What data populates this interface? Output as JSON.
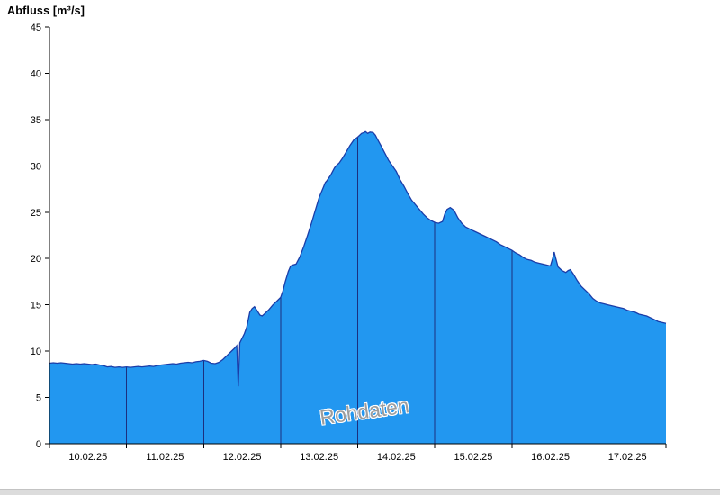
{
  "chart_data": {
    "type": "area",
    "title": "Abfluss [m³/s]",
    "watermark": "Rohdaten",
    "xlabel": "",
    "ylabel": "Abfluss [m³/s]",
    "ylim": [
      0,
      45
    ],
    "y_ticks": [
      0,
      5,
      10,
      15,
      20,
      25,
      30,
      35,
      40,
      45
    ],
    "x_tick_labels": [
      "10.02.25",
      "11.02.25",
      "12.02.25",
      "13.02.25",
      "14.02.25",
      "15.02.25",
      "16.02.25",
      "17.02.25"
    ],
    "x_days_span": 8,
    "grid": "vertical-day-lines-inside-area-only",
    "legend_position": "none",
    "colors": {
      "fill": "#2297f0",
      "line": "#1b3da8",
      "day_grid": "#1c2f7e",
      "axis": "#000000",
      "watermark": "#9c9c9c"
    },
    "series": [
      {
        "name": "Abfluss Rohdaten",
        "unit": "m³/s",
        "points": [
          [
            0.0,
            8.7
          ],
          [
            0.05,
            8.75
          ],
          [
            0.1,
            8.7
          ],
          [
            0.15,
            8.75
          ],
          [
            0.2,
            8.7
          ],
          [
            0.25,
            8.65
          ],
          [
            0.3,
            8.6
          ],
          [
            0.35,
            8.65
          ],
          [
            0.4,
            8.6
          ],
          [
            0.45,
            8.65
          ],
          [
            0.5,
            8.6
          ],
          [
            0.55,
            8.55
          ],
          [
            0.6,
            8.6
          ],
          [
            0.65,
            8.5
          ],
          [
            0.7,
            8.45
          ],
          [
            0.75,
            8.3
          ],
          [
            0.8,
            8.35
          ],
          [
            0.85,
            8.25
          ],
          [
            0.9,
            8.3
          ],
          [
            0.95,
            8.25
          ],
          [
            1.0,
            8.3
          ],
          [
            1.05,
            8.25
          ],
          [
            1.1,
            8.3
          ],
          [
            1.15,
            8.35
          ],
          [
            1.2,
            8.3
          ],
          [
            1.25,
            8.35
          ],
          [
            1.3,
            8.4
          ],
          [
            1.35,
            8.35
          ],
          [
            1.4,
            8.45
          ],
          [
            1.45,
            8.5
          ],
          [
            1.5,
            8.55
          ],
          [
            1.55,
            8.6
          ],
          [
            1.6,
            8.65
          ],
          [
            1.65,
            8.6
          ],
          [
            1.7,
            8.7
          ],
          [
            1.75,
            8.75
          ],
          [
            1.8,
            8.8
          ],
          [
            1.85,
            8.75
          ],
          [
            1.9,
            8.85
          ],
          [
            1.95,
            8.9
          ],
          [
            2.0,
            9.0
          ],
          [
            2.05,
            8.9
          ],
          [
            2.1,
            8.7
          ],
          [
            2.15,
            8.65
          ],
          [
            2.2,
            8.8
          ],
          [
            2.25,
            9.1
          ],
          [
            2.3,
            9.5
          ],
          [
            2.35,
            9.9
          ],
          [
            2.4,
            10.3
          ],
          [
            2.43,
            10.6
          ],
          [
            2.45,
            6.2
          ],
          [
            2.47,
            10.9
          ],
          [
            2.5,
            11.4
          ],
          [
            2.53,
            11.9
          ],
          [
            2.56,
            12.6
          ],
          [
            2.58,
            13.4
          ],
          [
            2.6,
            14.2
          ],
          [
            2.63,
            14.6
          ],
          [
            2.66,
            14.8
          ],
          [
            2.7,
            14.3
          ],
          [
            2.73,
            13.9
          ],
          [
            2.76,
            13.8
          ],
          [
            2.8,
            14.1
          ],
          [
            2.85,
            14.5
          ],
          [
            2.9,
            15.0
          ],
          [
            2.95,
            15.4
          ],
          [
            3.0,
            15.8
          ],
          [
            3.03,
            16.5
          ],
          [
            3.06,
            17.5
          ],
          [
            3.1,
            18.6
          ],
          [
            3.13,
            19.2
          ],
          [
            3.16,
            19.3
          ],
          [
            3.2,
            19.4
          ],
          [
            3.25,
            20.2
          ],
          [
            3.3,
            21.3
          ],
          [
            3.35,
            22.5
          ],
          [
            3.4,
            23.8
          ],
          [
            3.45,
            25.2
          ],
          [
            3.5,
            26.6
          ],
          [
            3.55,
            27.6
          ],
          [
            3.58,
            28.2
          ],
          [
            3.6,
            28.4
          ],
          [
            3.65,
            29.0
          ],
          [
            3.7,
            29.8
          ],
          [
            3.73,
            30.1
          ],
          [
            3.76,
            30.3
          ],
          [
            3.8,
            30.8
          ],
          [
            3.85,
            31.5
          ],
          [
            3.9,
            32.2
          ],
          [
            3.95,
            32.8
          ],
          [
            4.0,
            33.1
          ],
          [
            4.05,
            33.5
          ],
          [
            4.08,
            33.6
          ],
          [
            4.1,
            33.7
          ],
          [
            4.13,
            33.5
          ],
          [
            4.16,
            33.65
          ],
          [
            4.2,
            33.6
          ],
          [
            4.23,
            33.3
          ],
          [
            4.26,
            32.8
          ],
          [
            4.3,
            32.2
          ],
          [
            4.35,
            31.4
          ],
          [
            4.4,
            30.6
          ],
          [
            4.45,
            30.0
          ],
          [
            4.5,
            29.4
          ],
          [
            4.55,
            28.5
          ],
          [
            4.6,
            27.8
          ],
          [
            4.65,
            27.0
          ],
          [
            4.7,
            26.3
          ],
          [
            4.75,
            25.8
          ],
          [
            4.8,
            25.3
          ],
          [
            4.85,
            24.8
          ],
          [
            4.9,
            24.4
          ],
          [
            4.95,
            24.1
          ],
          [
            5.0,
            23.9
          ],
          [
            5.05,
            23.8
          ],
          [
            5.1,
            24.0
          ],
          [
            5.13,
            24.8
          ],
          [
            5.16,
            25.3
          ],
          [
            5.2,
            25.5
          ],
          [
            5.25,
            25.2
          ],
          [
            5.3,
            24.4
          ],
          [
            5.35,
            23.8
          ],
          [
            5.4,
            23.4
          ],
          [
            5.45,
            23.2
          ],
          [
            5.5,
            23.0
          ],
          [
            5.55,
            22.8
          ],
          [
            5.6,
            22.6
          ],
          [
            5.65,
            22.4
          ],
          [
            5.7,
            22.2
          ],
          [
            5.75,
            22.0
          ],
          [
            5.8,
            21.8
          ],
          [
            5.85,
            21.5
          ],
          [
            5.9,
            21.3
          ],
          [
            5.95,
            21.1
          ],
          [
            6.0,
            20.9
          ],
          [
            6.05,
            20.6
          ],
          [
            6.1,
            20.4
          ],
          [
            6.15,
            20.1
          ],
          [
            6.2,
            19.9
          ],
          [
            6.25,
            19.8
          ],
          [
            6.3,
            19.6
          ],
          [
            6.35,
            19.5
          ],
          [
            6.4,
            19.4
          ],
          [
            6.45,
            19.3
          ],
          [
            6.5,
            19.2
          ],
          [
            6.53,
            20.0
          ],
          [
            6.55,
            20.7
          ],
          [
            6.57,
            20.0
          ],
          [
            6.6,
            19.1
          ],
          [
            6.65,
            18.7
          ],
          [
            6.7,
            18.5
          ],
          [
            6.73,
            18.7
          ],
          [
            6.76,
            18.8
          ],
          [
            6.8,
            18.3
          ],
          [
            6.85,
            17.6
          ],
          [
            6.9,
            17.0
          ],
          [
            6.95,
            16.6
          ],
          [
            7.0,
            16.2
          ],
          [
            7.05,
            15.7
          ],
          [
            7.1,
            15.4
          ],
          [
            7.15,
            15.2
          ],
          [
            7.2,
            15.1
          ],
          [
            7.25,
            15.0
          ],
          [
            7.3,
            14.9
          ],
          [
            7.35,
            14.8
          ],
          [
            7.4,
            14.7
          ],
          [
            7.45,
            14.6
          ],
          [
            7.5,
            14.4
          ],
          [
            7.55,
            14.3
          ],
          [
            7.6,
            14.2
          ],
          [
            7.65,
            14.0
          ],
          [
            7.7,
            13.9
          ],
          [
            7.75,
            13.8
          ],
          [
            7.8,
            13.6
          ],
          [
            7.85,
            13.4
          ],
          [
            7.9,
            13.2
          ],
          [
            7.95,
            13.1
          ],
          [
            8.0,
            13.0
          ]
        ]
      }
    ]
  }
}
